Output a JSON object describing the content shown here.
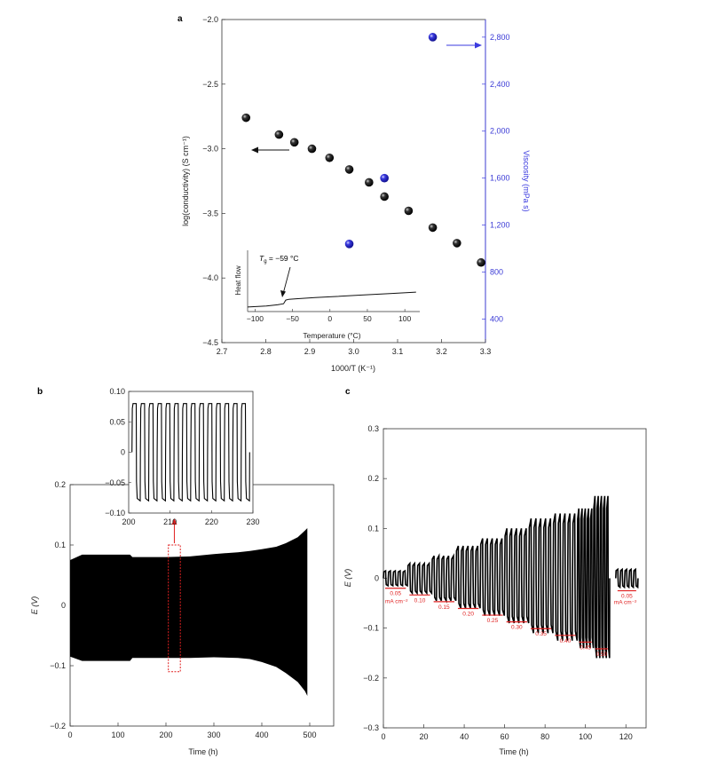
{
  "panels": {
    "a": {
      "label": "a",
      "chart_data": {
        "type": "scatter",
        "xlabel": "1000/T (K⁻¹)",
        "ylabel": "log(conductivity) (S cm⁻¹)",
        "y2label": "Viscosity (mPa s)",
        "xlim": [
          2.7,
          3.3
        ],
        "ylim": [
          -4.5,
          -2.0
        ],
        "y2lim": [
          200,
          2950
        ],
        "x_ticks": [
          "2.7",
          "2.8",
          "2.9",
          "3.0",
          "3.1",
          "3.2",
          "3.3"
        ],
        "y_ticks": [
          "−2.0",
          "−2.5",
          "−3.0",
          "−3.5",
          "−4.0",
          "−4.5"
        ],
        "y2_ticks": [
          "400",
          "800",
          "1,200",
          "1,600",
          "2,000",
          "2,400",
          "2,800"
        ],
        "series": [
          {
            "axis": "left",
            "color": "#111111",
            "x": [
              2.755,
              2.83,
              2.865,
              2.905,
              2.945,
              2.99,
              3.035,
              3.07,
              3.125,
              3.18,
              3.235,
              3.29
            ],
            "y": [
              -2.76,
              -2.89,
              -2.95,
              -3.0,
              -3.07,
              -3.16,
              -3.26,
              -3.37,
              -3.48,
              -3.61,
              -3.73,
              -3.88
            ]
          },
          {
            "axis": "right",
            "color": "#3a3adf",
            "x": [
              2.99,
              3.07,
              3.18
            ],
            "y": [
              1040,
              1600,
              2800
            ]
          }
        ],
        "inset": {
          "xlabel": "Temperature (°C)",
          "ylabel": "Heat flow",
          "annotation_sym": "T",
          "annotation_sub": "g",
          "annotation_val": " = −59 °C",
          "xlim": [
            -110,
            120
          ],
          "x_ticks": [
            "−100",
            "−50",
            "0",
            "50",
            "100"
          ],
          "curve_t": [
            -110,
            -85,
            -70,
            -62,
            -59,
            -55,
            -45,
            -20,
            0,
            40,
            80,
            115
          ],
          "curve_v": [
            0.1,
            0.14,
            0.18,
            0.22,
            0.35,
            0.38,
            0.4,
            0.44,
            0.47,
            0.53,
            0.59,
            0.64
          ]
        }
      }
    },
    "b": {
      "label": "b",
      "chart_data": {
        "type": "line",
        "xlabel": "Time (h)",
        "ylabel": "E (V)",
        "xlim": [
          0,
          550
        ],
        "ylim": [
          -0.2,
          0.2
        ],
        "x_ticks": [
          "0",
          "100",
          "200",
          "300",
          "400",
          "500"
        ],
        "y_ticks": [
          "0.2",
          "0.1",
          "0",
          "−0.1",
          "−0.2"
        ],
        "envelope_t": [
          0,
          25,
          75,
          125,
          130,
          175,
          200,
          250,
          300,
          350,
          375,
          400,
          430,
          450,
          475,
          490,
          495
        ],
        "envelope_upper": [
          0.075,
          0.084,
          0.084,
          0.084,
          0.08,
          0.08,
          0.08,
          0.081,
          0.085,
          0.088,
          0.09,
          0.093,
          0.097,
          0.103,
          0.113,
          0.124,
          0.128
        ],
        "envelope_lower": [
          -0.085,
          -0.092,
          -0.092,
          -0.092,
          -0.087,
          -0.087,
          -0.087,
          -0.087,
          -0.086,
          -0.087,
          -0.089,
          -0.094,
          -0.102,
          -0.112,
          -0.127,
          -0.142,
          -0.15
        ],
        "highlight_range": [
          205,
          230
        ],
        "inset": {
          "xlim": [
            200,
            230
          ],
          "ylim": [
            -0.1,
            0.1
          ],
          "x_ticks": [
            "200",
            "210",
            "220",
            "230"
          ],
          "y_ticks": [
            "0.10",
            "0.05",
            "0",
            "−0.05",
            "−0.10"
          ],
          "cycles": 14,
          "amplitude": 0.08
        }
      }
    },
    "c": {
      "label": "c",
      "chart_data": {
        "type": "line",
        "xlabel": "Time (h)",
        "ylabel": "E (V)",
        "xlim": [
          0,
          130
        ],
        "ylim": [
          -0.3,
          0.3
        ],
        "x_ticks": [
          "0",
          "20",
          "40",
          "60",
          "80",
          "100",
          "120"
        ],
        "y_ticks": [
          "0.3",
          "0.2",
          "0.1",
          "0",
          "−0.1",
          "−0.2",
          "−0.3"
        ],
        "current_densities": [
          "0.05",
          "0.10",
          "0.15",
          "0.20",
          "0.25",
          "0.30",
          "0.35",
          "0.40",
          "0.45",
          "0.50",
          "0.05"
        ],
        "unit_label": "mA cm⁻²",
        "segments": [
          {
            "t0": 0,
            "t1": 12,
            "up": 0.015,
            "down": -0.015
          },
          {
            "t0": 12,
            "t1": 24,
            "up": 0.03,
            "down": -0.03
          },
          {
            "t0": 24,
            "t1": 36,
            "up": 0.045,
            "down": -0.045
          },
          {
            "t0": 36,
            "t1": 48,
            "up": 0.065,
            "down": -0.06
          },
          {
            "t0": 48,
            "t1": 60,
            "up": 0.08,
            "down": -0.075
          },
          {
            "t0": 60,
            "t1": 72,
            "up": 0.1,
            "down": -0.09
          },
          {
            "t0": 72,
            "t1": 84,
            "up": 0.12,
            "down": -0.11
          },
          {
            "t0": 84,
            "t1": 96,
            "up": 0.13,
            "down": -0.125
          },
          {
            "t0": 96,
            "t1": 104,
            "up": 0.14,
            "down": -0.14
          },
          {
            "t0": 104,
            "t1": 112,
            "up": 0.165,
            "down": -0.16
          },
          {
            "t0": 115,
            "t1": 126,
            "up": 0.018,
            "down": -0.018
          }
        ]
      }
    }
  }
}
